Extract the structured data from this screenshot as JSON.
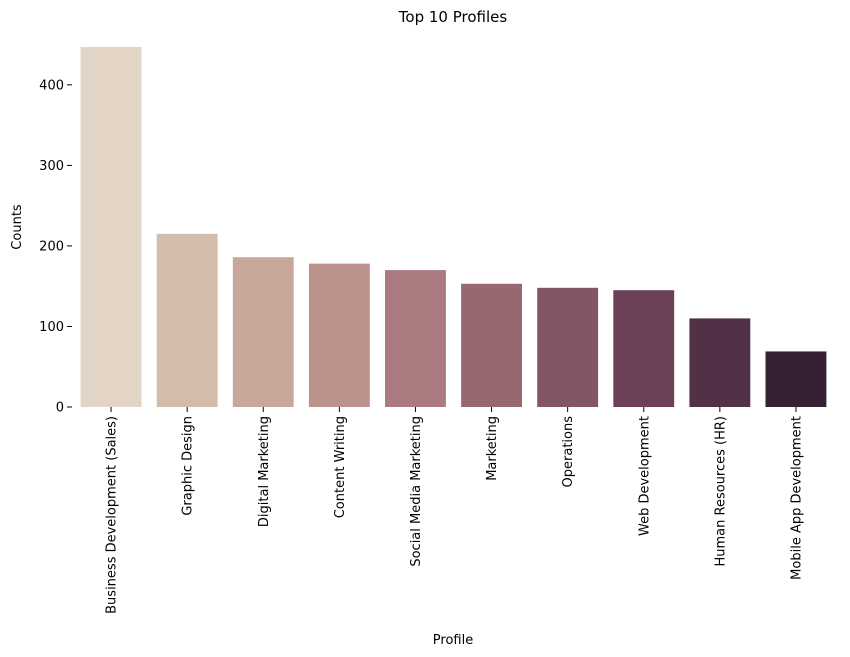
{
  "chart_data": {
    "type": "bar",
    "title": "Top 10 Profiles",
    "xlabel": "Profile",
    "ylabel": "Counts",
    "categories": [
      "Business Development (Sales)",
      "Graphic Design",
      "Digital Marketing",
      "Content Writing",
      "Social Media Marketing",
      "Marketing",
      "Operations",
      "Web Development",
      "Human Resources (HR)",
      "Mobile App Development"
    ],
    "values": [
      447,
      215,
      186,
      178,
      170,
      153,
      148,
      145,
      110,
      69
    ],
    "ylim": [
      0,
      447
    ],
    "yticks": [
      0,
      100,
      200,
      300,
      400
    ],
    "grid": false,
    "legend": "none",
    "colors": [
      "#e2d5c5",
      "#d4bcaa",
      "#c8a69a",
      "#bb918b",
      "#ac7b7f",
      "#986870",
      "#845566",
      "#6c4158",
      "#523047",
      "#362034"
    ]
  }
}
